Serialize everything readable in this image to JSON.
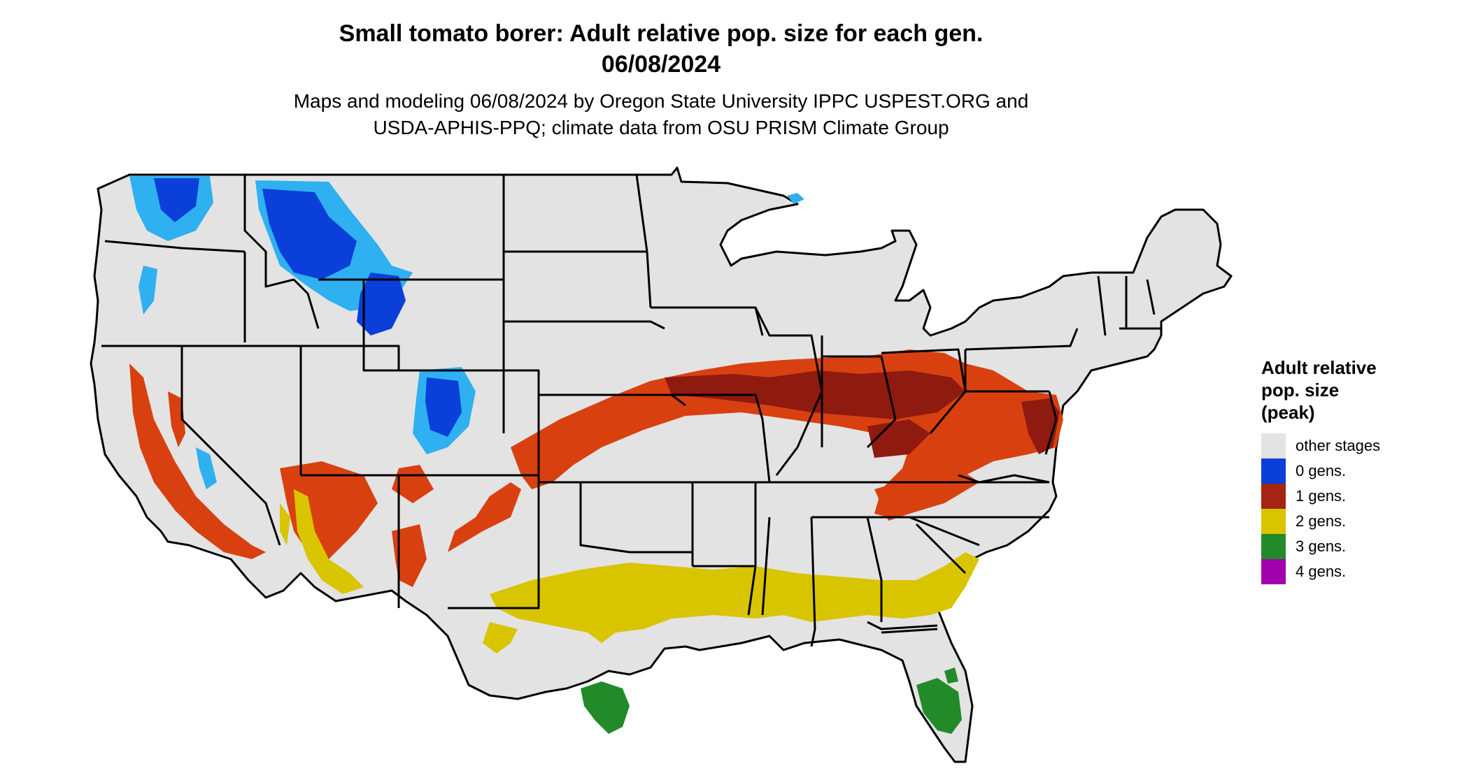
{
  "header": {
    "title_line1": "Small tomato borer: Adult relative pop. size for each gen.",
    "title_line2": "06/08/2024",
    "subtitle_line1": "Maps and modeling 06/08/2024 by Oregon State University IPPC USPEST.ORG and",
    "subtitle_line2": "USDA-APHIS-PPQ; climate data from OSU PRISM Climate Group"
  },
  "legend": {
    "title_line1": "Adult relative",
    "title_line2": "pop. size",
    "title_line3": "(peak)",
    "items": [
      {
        "label": "other stages",
        "color": "#e3e3e3"
      },
      {
        "label": "0 gens.",
        "color": "#0a3fd9"
      },
      {
        "label": "1 gens.",
        "color": "#a32512"
      },
      {
        "label": "2 gens.",
        "color": "#d9c400"
      },
      {
        "label": "3 gens.",
        "color": "#238a2a"
      },
      {
        "label": "4 gens.",
        "color": "#a100ad"
      }
    ]
  },
  "map": {
    "region": "contiguous United States",
    "base_color": "#e3e3e3",
    "border_color": "#000000",
    "zone_colors": {
      "zero_gens_dark": "#0a3fd9",
      "zero_gens_light": "#2fb0f0",
      "one_gen_orange": "#d94010",
      "one_gen_dark": "#8e1a10",
      "two_gens": "#d9c400",
      "three_gens": "#238a2a"
    }
  }
}
